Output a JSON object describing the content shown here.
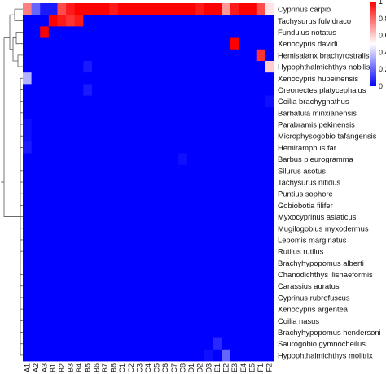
{
  "chart_data": {
    "type": "heatmap",
    "title": "",
    "xlabel": "",
    "ylabel": "",
    "columns": [
      "A1",
      "A2",
      "A3",
      "B1",
      "B2",
      "B3",
      "B4",
      "B5",
      "B6",
      "B7",
      "B8",
      "C1",
      "C2",
      "C3",
      "C4",
      "C5",
      "C6",
      "C7",
      "C8",
      "D1",
      "D2",
      "D3",
      "E1",
      "E2",
      "E3",
      "E4",
      "E5",
      "F1",
      "F2"
    ],
    "rows": [
      "Cyprinus carpio",
      "Tachysurus fulvidraco",
      "Fundulus notatus",
      "Xenocypris davidi",
      "Hemisalanx brachyrostralis",
      "Hypophthalmichthys nobilis",
      "Xenocypris hupeinensis",
      "Oreonectes platycephalus",
      "Coilia brachygnathus",
      "Barbatula minxianensis",
      "Parabramis pekinensis",
      "Microphysogobio  tafangensis",
      "Hemiramphus far",
      "Barbus pleurogramma",
      "Silurus asotus",
      "Tachysurus nitidus",
      "Puntius sophore",
      "Gobiobotia filifer",
      "Myxocyprinus asiaticus",
      "Mugilogobius myxodermus",
      "Lepomis marginatus",
      "Rutilus rutilus",
      "Brachyhypopomus alberti",
      "Chanodichthys ilishaeformis",
      "Carassius auratus",
      "Cyprinus rubrofuscus",
      "Xenocypris argentea",
      "Coilia nasus",
      "Brachyhypopomus hendersoni",
      "Saurogobio gymnocheilus",
      "Hypophthalmichthys molitrix"
    ],
    "values": [
      [
        0.75,
        0.2,
        0.05,
        0.05,
        0.85,
        0.95,
        1,
        1,
        1,
        1,
        0.95,
        1,
        1,
        1,
        1,
        1,
        1,
        1,
        1,
        1,
        0.95,
        1,
        1,
        0.7,
        0.95,
        1,
        1,
        0.85,
        0.55
      ],
      [
        0,
        0,
        0,
        1,
        0.95,
        0.9,
        0.95,
        0,
        0,
        0,
        0,
        0,
        0,
        0,
        0,
        0,
        0,
        0,
        0,
        0,
        0,
        0,
        0,
        0,
        0,
        0,
        0,
        0,
        0
      ],
      [
        0,
        0,
        1,
        0,
        0,
        0,
        0,
        0,
        0,
        0,
        0,
        0,
        0,
        0,
        0,
        0,
        0,
        0,
        0,
        0,
        0,
        0,
        0,
        0,
        0,
        0,
        0,
        0,
        0
      ],
      [
        0,
        0,
        0,
        0,
        0,
        0,
        0,
        0,
        0,
        0,
        0,
        0,
        0,
        0,
        0,
        0,
        0,
        0,
        0,
        0,
        0,
        0,
        0,
        0,
        1,
        0,
        0,
        0,
        0
      ],
      [
        0,
        0,
        0,
        0,
        0,
        0,
        0,
        0,
        0,
        0,
        0,
        0,
        0,
        0,
        0,
        0,
        0,
        0,
        0,
        0,
        0,
        0,
        0,
        0,
        0,
        0,
        0,
        0.9,
        0
      ],
      [
        0,
        0,
        0,
        0,
        0,
        0,
        0,
        0.05,
        0,
        0,
        0,
        0,
        0,
        0,
        0,
        0,
        0,
        0,
        0,
        0,
        0,
        0,
        0,
        0,
        0,
        0,
        0,
        0,
        0.6
      ],
      [
        0.35,
        0,
        0,
        0,
        0,
        0,
        0,
        0,
        0,
        0,
        0,
        0,
        0,
        0,
        0,
        0,
        0,
        0,
        0,
        0,
        0,
        0,
        0,
        0,
        0,
        0,
        0,
        0,
        0
      ],
      [
        0,
        0,
        0,
        0,
        0,
        0,
        0,
        0.05,
        0,
        0,
        0,
        0,
        0,
        0,
        0,
        0,
        0,
        0,
        0,
        0,
        0,
        0,
        0,
        0,
        0,
        0,
        0,
        0,
        0
      ],
      [
        0,
        0,
        0,
        0,
        0,
        0,
        0,
        0,
        0,
        0,
        0,
        0,
        0,
        0,
        0,
        0,
        0,
        0,
        0,
        0,
        0,
        0,
        0,
        0,
        0,
        0,
        0,
        0,
        0.03
      ],
      [
        0,
        0,
        0,
        0,
        0,
        0,
        0,
        0,
        0,
        0,
        0,
        0,
        0,
        0,
        0,
        0,
        0,
        0,
        0,
        0,
        0,
        0,
        0,
        0,
        0,
        0,
        0,
        0,
        0
      ],
      [
        0.03,
        0,
        0,
        0,
        0,
        0,
        0,
        0,
        0,
        0,
        0,
        0,
        0,
        0,
        0,
        0,
        0,
        0,
        0,
        0,
        0,
        0,
        0,
        0,
        0,
        0,
        0,
        0,
        0
      ],
      [
        0.03,
        0,
        0,
        0,
        0,
        0,
        0,
        0,
        0,
        0,
        0,
        0,
        0,
        0,
        0,
        0,
        0,
        0,
        0,
        0,
        0,
        0,
        0,
        0,
        0,
        0,
        0,
        0,
        0
      ],
      [
        0.05,
        0,
        0,
        0,
        0,
        0,
        0,
        0,
        0,
        0,
        0,
        0,
        0,
        0,
        0,
        0,
        0,
        0,
        0,
        0,
        0,
        0,
        0,
        0,
        0,
        0,
        0,
        0,
        0
      ],
      [
        0,
        0,
        0,
        0,
        0,
        0,
        0,
        0,
        0,
        0,
        0,
        0,
        0,
        0,
        0,
        0,
        0,
        0,
        0.03,
        0,
        0,
        0,
        0,
        0,
        0,
        0,
        0,
        0,
        0
      ],
      [
        0,
        0,
        0,
        0,
        0,
        0,
        0,
        0,
        0,
        0,
        0,
        0,
        0,
        0,
        0,
        0,
        0,
        0,
        0,
        0,
        0,
        0,
        0,
        0,
        0,
        0,
        0,
        0,
        0
      ],
      [
        0,
        0,
        0,
        0,
        0,
        0,
        0,
        0,
        0,
        0,
        0,
        0,
        0,
        0,
        0,
        0,
        0,
        0,
        0,
        0,
        0,
        0,
        0,
        0,
        0,
        0,
        0,
        0,
        0
      ],
      [
        0,
        0,
        0,
        0,
        0,
        0,
        0,
        0,
        0,
        0,
        0,
        0,
        0,
        0,
        0,
        0,
        0,
        0,
        0,
        0,
        0,
        0,
        0,
        0,
        0,
        0,
        0,
        0,
        0
      ],
      [
        0,
        0,
        0,
        0,
        0,
        0,
        0,
        0,
        0,
        0,
        0,
        0,
        0,
        0,
        0,
        0,
        0,
        0,
        0,
        0,
        0,
        0,
        0,
        0,
        0,
        0,
        0,
        0,
        0
      ],
      [
        0,
        0,
        0,
        0,
        0,
        0,
        0,
        0,
        0,
        0,
        0,
        0,
        0,
        0,
        0,
        0,
        0,
        0,
        0,
        0,
        0,
        0,
        0,
        0,
        0,
        0,
        0,
        0,
        0
      ],
      [
        0,
        0,
        0,
        0,
        0,
        0,
        0,
        0,
        0,
        0,
        0,
        0,
        0,
        0,
        0,
        0,
        0,
        0,
        0,
        0,
        0,
        0,
        0,
        0,
        0,
        0,
        0,
        0,
        0
      ],
      [
        0,
        0,
        0,
        0,
        0,
        0,
        0,
        0,
        0,
        0,
        0,
        0,
        0,
        0,
        0,
        0,
        0,
        0,
        0,
        0,
        0,
        0,
        0,
        0,
        0,
        0,
        0,
        0,
        0
      ],
      [
        0,
        0,
        0,
        0,
        0,
        0,
        0,
        0,
        0,
        0,
        0,
        0,
        0,
        0,
        0,
        0,
        0,
        0,
        0,
        0,
        0,
        0,
        0,
        0,
        0,
        0,
        0,
        0,
        0
      ],
      [
        0,
        0,
        0,
        0,
        0,
        0,
        0,
        0,
        0,
        0,
        0,
        0,
        0,
        0,
        0,
        0,
        0,
        0,
        0,
        0,
        0,
        0,
        0,
        0,
        0,
        0,
        0,
        0,
        0
      ],
      [
        0,
        0,
        0,
        0,
        0,
        0,
        0,
        0,
        0,
        0,
        0,
        0,
        0,
        0,
        0,
        0,
        0,
        0,
        0,
        0,
        0,
        0,
        0,
        0,
        0,
        0,
        0,
        0,
        0
      ],
      [
        0,
        0,
        0,
        0,
        0,
        0,
        0,
        0,
        0,
        0,
        0,
        0,
        0,
        0,
        0,
        0,
        0,
        0,
        0,
        0,
        0,
        0,
        0,
        0,
        0,
        0,
        0,
        0,
        0
      ],
      [
        0,
        0,
        0,
        0,
        0,
        0,
        0,
        0,
        0,
        0,
        0,
        0,
        0,
        0,
        0,
        0,
        0,
        0,
        0,
        0,
        0,
        0,
        0,
        0,
        0,
        0,
        0,
        0,
        0
      ],
      [
        0,
        0,
        0,
        0,
        0,
        0,
        0,
        0,
        0,
        0,
        0,
        0,
        0,
        0,
        0,
        0,
        0,
        0,
        0,
        0,
        0,
        0,
        0,
        0,
        0,
        0,
        0,
        0,
        0
      ],
      [
        0,
        0,
        0,
        0,
        0,
        0,
        0,
        0,
        0,
        0,
        0,
        0,
        0,
        0,
        0,
        0,
        0,
        0,
        0,
        0,
        0,
        0,
        0,
        0,
        0,
        0,
        0,
        0,
        0
      ],
      [
        0,
        0,
        0,
        0,
        0,
        0,
        0,
        0,
        0,
        0,
        0,
        0,
        0,
        0,
        0,
        0,
        0,
        0,
        0,
        0,
        0,
        0,
        0,
        0,
        0,
        0,
        0,
        0,
        0
      ],
      [
        0,
        0,
        0,
        0,
        0,
        0,
        0,
        0,
        0,
        0,
        0,
        0,
        0,
        0,
        0,
        0,
        0,
        0,
        0,
        0,
        0,
        0,
        0.08,
        0,
        0,
        0,
        0,
        0,
        0
      ],
      [
        0,
        0,
        0,
        0,
        0,
        0,
        0,
        0,
        0,
        0,
        0,
        0,
        0,
        0,
        0,
        0,
        0,
        0,
        0,
        0,
        0,
        0.03,
        0,
        0.2,
        0,
        0,
        0,
        0,
        0
      ]
    ],
    "colorbar": {
      "range": [
        0,
        1
      ],
      "ticks": [
        "1",
        "0.8",
        "0.6",
        "0.4",
        "0.2",
        "0"
      ],
      "colors": [
        "#ff0000",
        "#ffffff",
        "#0000ff"
      ]
    },
    "dendrogram": "rows",
    "grid": false,
    "legend": "colorbar at top-right"
  }
}
